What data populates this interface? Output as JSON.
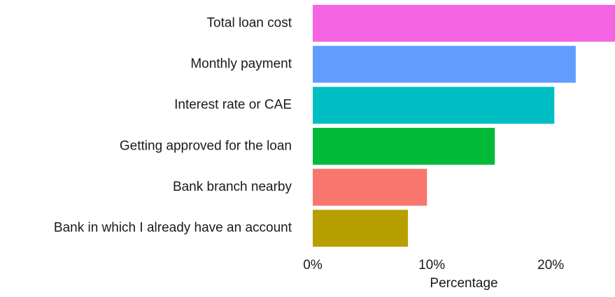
{
  "chart_data": {
    "type": "bar",
    "orientation": "horizontal",
    "categories": [
      "Total loan cost",
      "Monthly payment",
      "Interest rate or CAE",
      "Getting approved for the loan",
      "Bank branch nearby",
      "Bank in which I already have an account"
    ],
    "values": [
      25.4,
      22.1,
      20.3,
      15.3,
      9.6,
      8.0
    ],
    "colors": [
      "#f564e3",
      "#619cff",
      "#00bfc4",
      "#00ba38",
      "#f8766d",
      "#b79f00"
    ],
    "xlabel": "Percentage",
    "xlim": [
      0,
      25.4
    ],
    "xticks": [
      {
        "value": 0,
        "label": "0%"
      },
      {
        "value": 10,
        "label": "10%"
      },
      {
        "value": 20,
        "label": "20%"
      }
    ],
    "grid": false
  }
}
